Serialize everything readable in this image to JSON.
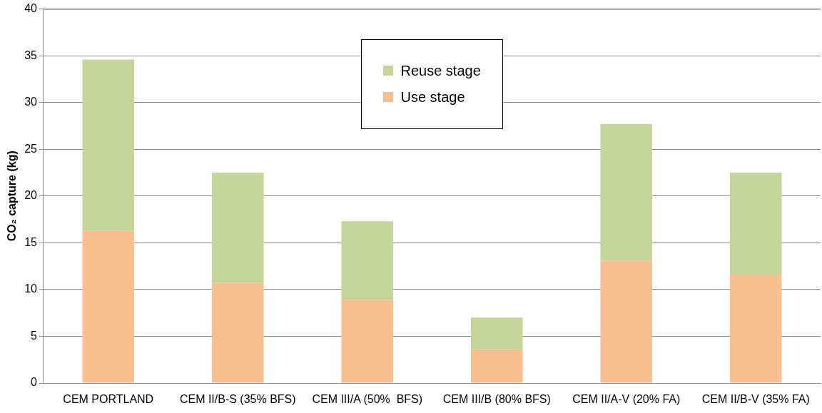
{
  "chart_data": {
    "type": "bar",
    "stacked": true,
    "ylabel": "CO₂ capture (kg)",
    "categories": [
      "CEM PORTLAND",
      "CEM II/B-S (35% BFS)",
      "CEM III/A (50%  BFS)",
      "CEM III/B (80% BFS)",
      "CEM II/A-V (20% FA)",
      "CEM II/B-V (35% FA)"
    ],
    "series": [
      {
        "name": "Use stage",
        "color": "#f8bf90",
        "values": [
          16.3,
          10.7,
          8.9,
          3.6,
          13.1,
          11.6
        ]
      },
      {
        "name": "Reuse stage",
        "color": "#c4d69c",
        "values": [
          18.3,
          11.8,
          8.4,
          3.4,
          14.6,
          10.9
        ]
      }
    ],
    "ylim": [
      0,
      40
    ],
    "yticks": [
      0,
      5,
      10,
      15,
      20,
      25,
      30,
      35,
      40
    ],
    "grid": "y",
    "legend": "top"
  }
}
